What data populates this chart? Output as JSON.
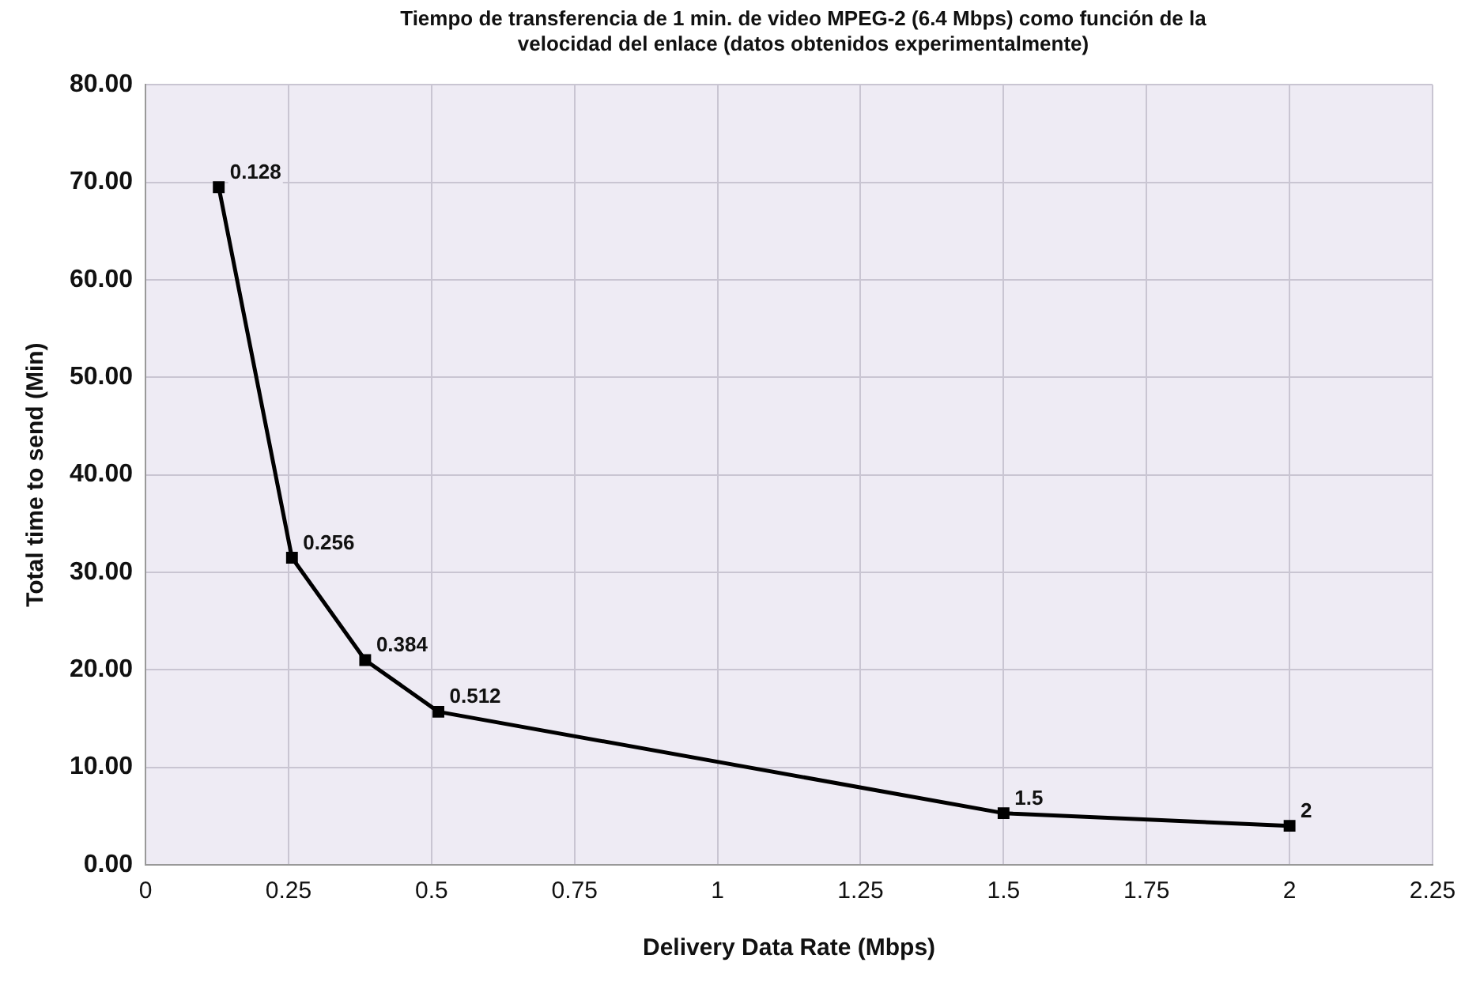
{
  "chart_data": {
    "type": "line",
    "title": "Tiempo de transferencia de 1 min. de video MPEG-2 (6.4 Mbps)  como función de la velocidad del enlace (datos obtenidos experimentalmente)",
    "xlabel": "Delivery Data Rate (Mbps)",
    "ylabel": "Total time to send (Min)",
    "x": [
      0.128,
      0.256,
      0.384,
      0.512,
      1.5,
      2
    ],
    "series": [
      {
        "color": "#000000",
        "values": [
          69.5,
          31.5,
          21,
          15.7,
          5.3,
          4.0
        ]
      }
    ],
    "annotations": [
      {
        "text": "0.128",
        "x": 0.128,
        "y": 69.5
      },
      {
        "text": "0.256",
        "x": 0.256,
        "y": 31.5
      },
      {
        "text": "0.384",
        "x": 0.384,
        "y": 21
      },
      {
        "text": "0.512",
        "x": 0.512,
        "y": 15.7
      },
      {
        "text": "1.5",
        "x": 1.5,
        "y": 5.3
      },
      {
        "text": "2",
        "x": 2,
        "y": 4.0
      }
    ],
    "xlim": [
      0,
      2.25
    ],
    "xticks": [
      0,
      0.25,
      0.5,
      0.75,
      1,
      1.25,
      1.5,
      1.75,
      2,
      2.25
    ],
    "ylim": [
      0,
      80
    ],
    "yticks": [
      {
        "value": 0,
        "label": "0.00"
      },
      {
        "value": 10,
        "label": "10.00"
      },
      {
        "value": 20,
        "label": "20.00"
      },
      {
        "value": 30,
        "label": "30.00"
      },
      {
        "value": 40,
        "label": "40.00"
      },
      {
        "value": 50,
        "label": "50.00"
      },
      {
        "value": 60,
        "label": "60.00"
      },
      {
        "value": 70,
        "label": "70.00"
      },
      {
        "value": 80,
        "label": "80.00"
      }
    ],
    "grid": true,
    "legend": false,
    "marker": "square",
    "line_style": "solid"
  }
}
